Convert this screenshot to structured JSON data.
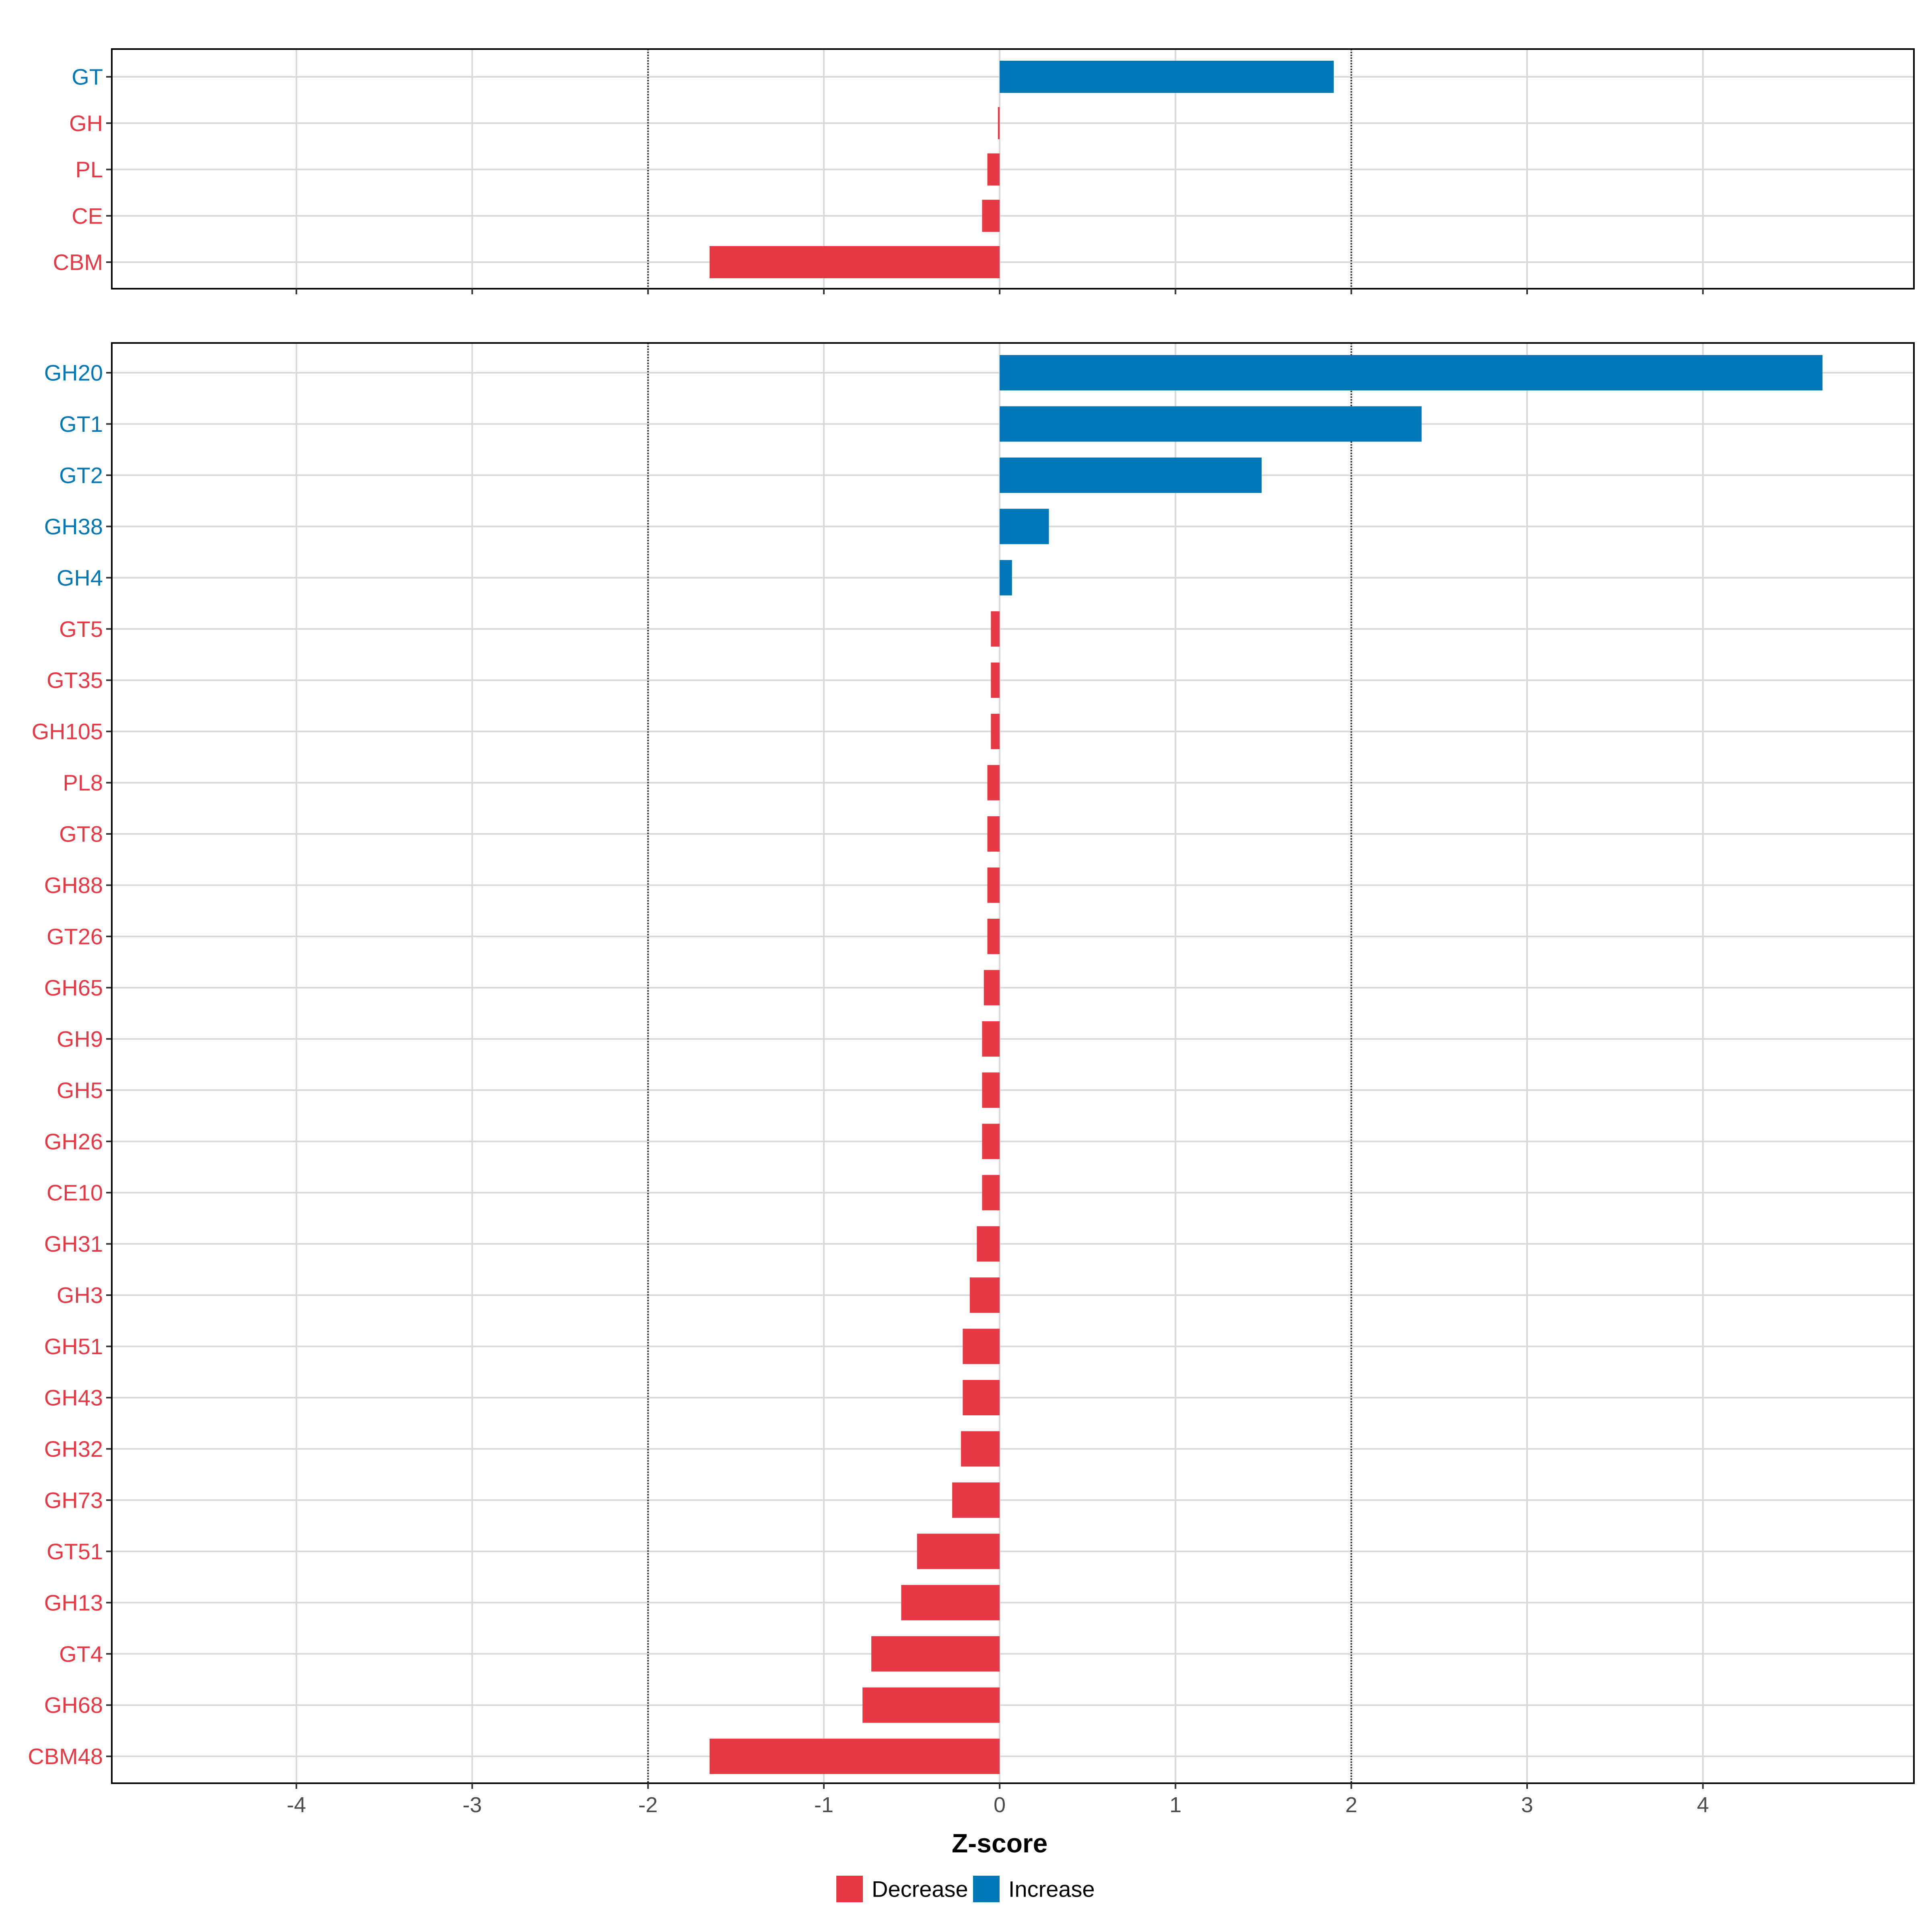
{
  "chart_data": [
    {
      "type": "bar",
      "orientation": "horizontal",
      "panel": "top",
      "xlim": [
        -5.05,
        5.2
      ],
      "threshold_lines": [
        -2,
        2
      ],
      "categories": [
        "GT",
        "GH",
        "PL",
        "CE",
        "CBM"
      ],
      "values": [
        1.9,
        -0.01,
        -0.07,
        -0.1,
        -1.65
      ],
      "groups": [
        "Increase",
        "Decrease",
        "Decrease",
        "Decrease",
        "Decrease"
      ]
    },
    {
      "type": "bar",
      "orientation": "horizontal",
      "panel": "bottom",
      "xlim": [
        -5.05,
        5.2
      ],
      "threshold_lines": [
        -2,
        2
      ],
      "categories": [
        "GH20",
        "GT1",
        "GT2",
        "GH38",
        "GH4",
        "GT5",
        "GT35",
        "GH105",
        "PL8",
        "GT8",
        "GH88",
        "GT26",
        "GH65",
        "GH9",
        "GH5",
        "GH26",
        "CE10",
        "GH31",
        "GH3",
        "GH51",
        "GH43",
        "GH32",
        "GH73",
        "GT51",
        "GH13",
        "GT4",
        "GH68",
        "CBM48"
      ],
      "values": [
        4.68,
        2.4,
        1.49,
        0.28,
        0.07,
        -0.05,
        -0.05,
        -0.05,
        -0.07,
        -0.07,
        -0.07,
        -0.07,
        -0.09,
        -0.1,
        -0.1,
        -0.1,
        -0.1,
        -0.13,
        -0.17,
        -0.21,
        -0.21,
        -0.22,
        -0.27,
        -0.47,
        -0.56,
        -0.73,
        -0.78,
        -1.65
      ],
      "groups": [
        "Increase",
        "Increase",
        "Increase",
        "Increase",
        "Increase",
        "Decrease",
        "Decrease",
        "Decrease",
        "Decrease",
        "Decrease",
        "Decrease",
        "Decrease",
        "Decrease",
        "Decrease",
        "Decrease",
        "Decrease",
        "Decrease",
        "Decrease",
        "Decrease",
        "Decrease",
        "Decrease",
        "Decrease",
        "Decrease",
        "Decrease",
        "Decrease",
        "Decrease",
        "Decrease",
        "Decrease"
      ]
    }
  ],
  "x_ticks": [
    -4,
    -3,
    -2,
    -1,
    0,
    1,
    2,
    3,
    4
  ],
  "xlabel": "Z-score",
  "legend": {
    "position": "bottom",
    "items": [
      {
        "label": "Decrease",
        "color": "#E63946"
      },
      {
        "label": "Increase",
        "color": "#0077B6"
      }
    ]
  },
  "colors": {
    "Decrease": "#E63946",
    "Increase": "#0077B6",
    "grid": "#D9D9D9",
    "threshold": "#222222",
    "panel_border": "#000000"
  }
}
